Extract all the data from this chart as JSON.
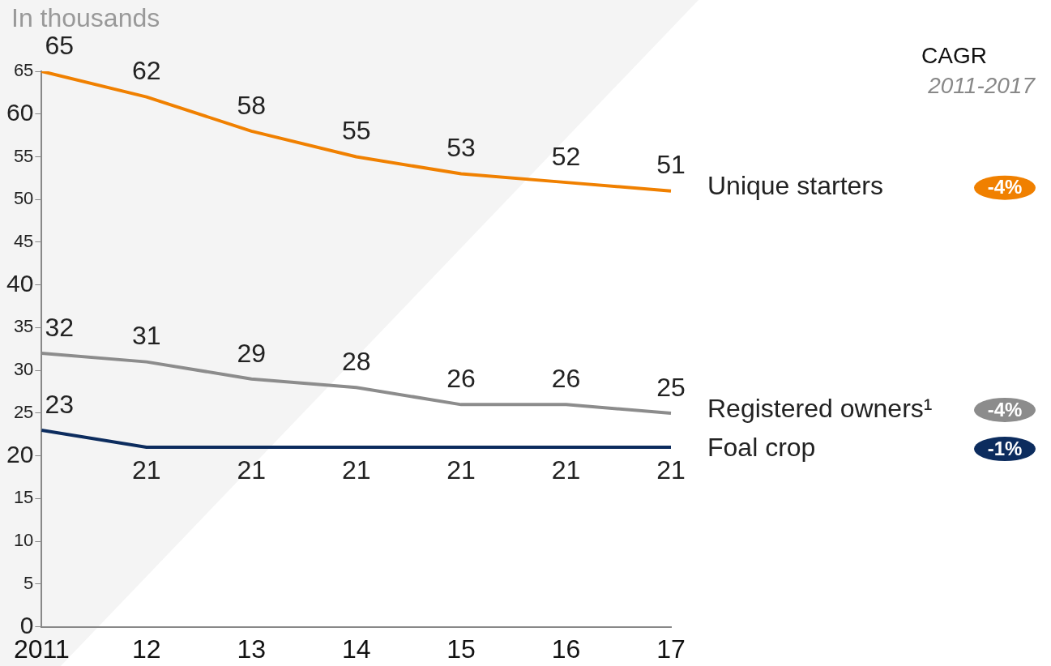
{
  "chart_data": {
    "type": "line",
    "ylabel": "In thousands",
    "categories": [
      "2011",
      "12",
      "13",
      "14",
      "15",
      "16",
      "17"
    ],
    "series": [
      {
        "name": "Unique starters",
        "color": "#f08000",
        "values": [
          65,
          62,
          58,
          55,
          53,
          52,
          51
        ]
      },
      {
        "name": "Registered owners¹",
        "color": "#8c8c8c",
        "values": [
          32,
          31,
          29,
          28,
          26,
          26,
          25
        ]
      },
      {
        "name": "Foal crop",
        "color": "#0c2c5e",
        "values": [
          23,
          21,
          21,
          21,
          21,
          21,
          21
        ]
      }
    ],
    "ylim": [
      0,
      65
    ],
    "yticks": [
      0,
      5,
      10,
      15,
      20,
      25,
      30,
      35,
      40,
      45,
      50,
      55,
      60,
      65
    ],
    "data_labels": true,
    "grid": false,
    "marker": "none",
    "line_style": "solid",
    "annotations": [
      "CAGR",
      "2011-2017",
      "-4%",
      "-4%",
      "-1%"
    ]
  }
}
